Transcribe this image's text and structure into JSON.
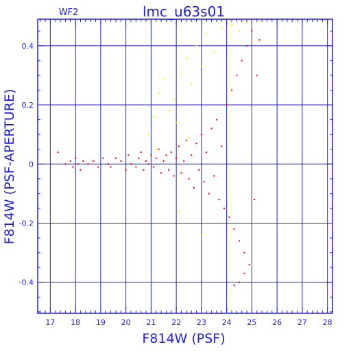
{
  "chart_data": {
    "type": "scatter",
    "panel_label": "WF2",
    "title": "lmc_u63s01",
    "xlabel": "F814W (PSF)",
    "ylabel": "F814W (PSF-APERTURE)",
    "xlim": [
      16.5,
      28.2
    ],
    "ylim": [
      -0.505,
      0.49
    ],
    "xticks": [
      17,
      18,
      19,
      20,
      21,
      22,
      23,
      24,
      25,
      26,
      27,
      28
    ],
    "xtick_labels": [
      "17",
      "18",
      "19",
      "20",
      "21",
      "22",
      "23",
      "24",
      "25",
      "26",
      "27",
      "28"
    ],
    "yticks": [
      -0.4,
      -0.2,
      0,
      0.2,
      0.4
    ],
    "ytick_labels": [
      "-0.4",
      "-0.2",
      "0",
      "0.2",
      "0.4"
    ],
    "grid": true,
    "colors": {
      "axis": "#1f1fd6",
      "primary": "#e60000",
      "secondary": "#ffee00"
    },
    "series": [
      {
        "color": "#e60000",
        "points": [
          [
            17.3,
            0.04
          ],
          [
            17.6,
            0.0
          ],
          [
            17.8,
            0.01
          ],
          [
            17.9,
            -0.01
          ],
          [
            18.0,
            0.02
          ],
          [
            18.1,
            0.0
          ],
          [
            18.2,
            -0.02
          ],
          [
            18.3,
            0.01
          ],
          [
            18.5,
            0.0
          ],
          [
            18.7,
            0.01
          ],
          [
            18.9,
            -0.01
          ],
          [
            19.1,
            0.02
          ],
          [
            19.3,
            0.0
          ],
          [
            19.4,
            -0.01
          ],
          [
            19.6,
            0.02
          ],
          [
            19.8,
            0.01
          ],
          [
            20.0,
            -0.02
          ],
          [
            20.1,
            0.03
          ],
          [
            20.2,
            0.0
          ],
          [
            20.4,
            -0.01
          ],
          [
            20.5,
            0.02
          ],
          [
            20.6,
            0.04
          ],
          [
            20.7,
            -0.02
          ],
          [
            20.8,
            0.01
          ],
          [
            20.9,
            0.0
          ],
          [
            21.0,
            0.03
          ],
          [
            21.1,
            -0.01
          ],
          [
            21.2,
            0.02
          ],
          [
            21.3,
            0.05
          ],
          [
            21.4,
            -0.03
          ],
          [
            21.5,
            0.01
          ],
          [
            21.6,
            0.03
          ],
          [
            21.7,
            -0.02
          ],
          [
            21.8,
            0.04
          ],
          [
            21.9,
            -0.04
          ],
          [
            22.0,
            0.02
          ],
          [
            22.1,
            0.06
          ],
          [
            22.2,
            -0.03
          ],
          [
            22.3,
            0.01
          ],
          [
            22.4,
            0.08
          ],
          [
            22.5,
            -0.05
          ],
          [
            22.6,
            0.03
          ],
          [
            22.7,
            -0.08
          ],
          [
            22.8,
            0.07
          ],
          [
            22.9,
            -0.02
          ],
          [
            23.0,
            0.1
          ],
          [
            23.1,
            -0.06
          ],
          [
            23.2,
            0.04
          ],
          [
            23.3,
            -0.1
          ],
          [
            23.4,
            0.12
          ],
          [
            23.5,
            -0.04
          ],
          [
            23.6,
            0.15
          ],
          [
            23.7,
            -0.12
          ],
          [
            23.8,
            0.06
          ],
          [
            23.9,
            -0.15
          ],
          [
            24.0,
            0.2
          ],
          [
            24.1,
            -0.18
          ],
          [
            24.2,
            0.25
          ],
          [
            24.3,
            -0.22
          ],
          [
            24.4,
            0.3
          ],
          [
            24.5,
            -0.26
          ],
          [
            24.6,
            0.35
          ],
          [
            24.7,
            -0.3
          ],
          [
            24.8,
            0.4
          ],
          [
            24.9,
            -0.34
          ],
          [
            25.0,
            0.45
          ],
          [
            25.1,
            -0.12
          ],
          [
            25.2,
            0.3
          ],
          [
            25.3,
            0.42
          ],
          [
            24.3,
            -0.41
          ],
          [
            24.5,
            -0.4
          ],
          [
            24.7,
            -0.37
          ]
        ]
      },
      {
        "color": "#ffee00",
        "points": [
          [
            20.9,
            0.1
          ],
          [
            21.1,
            0.16
          ],
          [
            21.3,
            0.24
          ],
          [
            21.5,
            0.29
          ],
          [
            21.7,
            0.18
          ],
          [
            21.9,
            0.22
          ],
          [
            22.0,
            0.14
          ],
          [
            22.2,
            0.31
          ],
          [
            22.4,
            0.36
          ],
          [
            22.6,
            0.27
          ],
          [
            22.8,
            0.4
          ],
          [
            23.0,
            0.33
          ],
          [
            23.2,
            0.44
          ],
          [
            23.5,
            0.38
          ],
          [
            23.8,
            0.46
          ],
          [
            24.2,
            0.47
          ],
          [
            24.5,
            0.45
          ],
          [
            24.8,
            0.48
          ],
          [
            22.1,
            -0.16
          ],
          [
            23.0,
            -0.24
          ],
          [
            22.5,
            0.09
          ],
          [
            21.2,
            0.05
          ]
        ]
      }
    ]
  }
}
